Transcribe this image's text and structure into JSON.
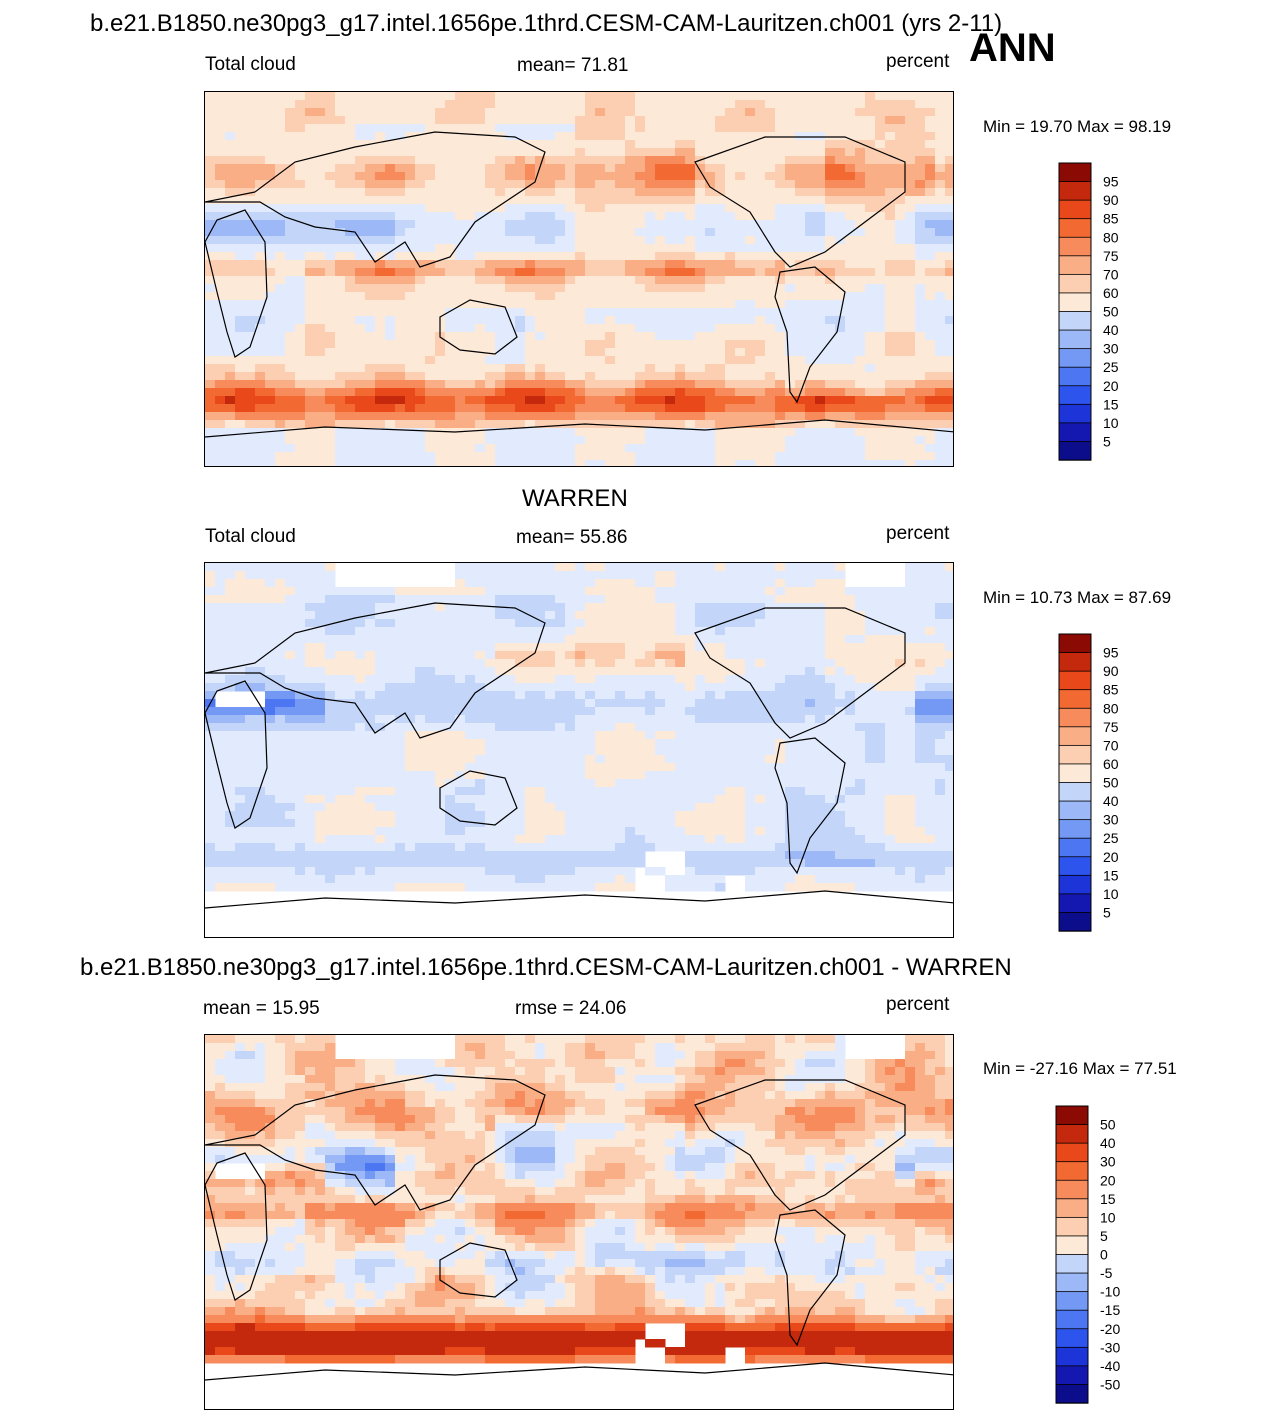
{
  "colors": {
    "abs_levels": [
      "#0b0d8a",
      "#1418b0",
      "#1d35d8",
      "#2e54ee",
      "#4d77f2",
      "#7399f4",
      "#9cb8f6",
      "#c3d6fa",
      "#e1ebfd",
      "#fde9d8",
      "#fccfb2",
      "#f9ae86",
      "#f78b5c",
      "#f26a32",
      "#e9481a",
      "#c5290d",
      "#8c0a04"
    ],
    "diff_levels": [
      "#0b0d8a",
      "#1418b0",
      "#1d35d8",
      "#2e54ee",
      "#4d77f2",
      "#7399f4",
      "#9cb8f6",
      "#c3d6fa",
      "#e1ebfd",
      "#fde9d8",
      "#fccfb2",
      "#f9ae86",
      "#f78b5c",
      "#f26a32",
      "#e9481a",
      "#c5290d",
      "#8c0a04"
    ],
    "coast": "#000000",
    "missing": "#ffffff"
  },
  "figure": {
    "main_title": "b.e21.B1850.ne30pg3_g17.intel.1656pe.1thrd.CESM-CAM-Lauritzen.ch001 (yrs 2-11)",
    "season": "ANN",
    "obs_title": "WARREN",
    "diff_title": "b.e21.B1850.ne30pg3_g17.intel.1656pe.1thrd.CESM-CAM-Lauritzen.ch001 - WARREN"
  },
  "panels": [
    {
      "left_label": "Total cloud",
      "center_label": "mean=  71.81",
      "units": "percent",
      "minmax": "Min =  19.70 Max =  98.19"
    },
    {
      "left_label": "Total cloud",
      "center_label": "mean=  55.86",
      "units": "percent",
      "minmax": "Min =  10.73 Max =  87.69"
    },
    {
      "left_label": "mean =  15.95",
      "center_label": "rmse =  24.06",
      "units": "percent",
      "minmax": "Min = -27.16 Max =  77.51"
    }
  ],
  "chart_data": [
    {
      "type": "heatmap",
      "title": "Total cloud (model, yrs 2-11, ANN)",
      "units": "percent",
      "mean": 71.81,
      "min": 19.7,
      "max": 98.19,
      "colorbar_levels": [
        "95",
        "90",
        "85",
        "80",
        "75",
        "70",
        "60",
        "50",
        "40",
        "30",
        "25",
        "20",
        "15",
        "10",
        "5"
      ],
      "domain": "global lon/lat map, centered on the Pacific"
    },
    {
      "type": "heatmap",
      "title": "Total cloud (WARREN observations)",
      "units": "percent",
      "mean": 55.86,
      "min": 10.73,
      "max": 87.69,
      "colorbar_levels": [
        "95",
        "90",
        "85",
        "80",
        "75",
        "70",
        "60",
        "50",
        "40",
        "30",
        "25",
        "20",
        "15",
        "10",
        "5"
      ],
      "domain": "global lon/lat map, centered on the Pacific"
    },
    {
      "type": "heatmap",
      "title": "Model - WARREN difference",
      "units": "percent",
      "mean": 15.95,
      "rmse": 24.06,
      "min": -27.16,
      "max": 77.51,
      "colorbar_levels": [
        "50",
        "40",
        "30",
        "20",
        "15",
        "10",
        "5",
        "0",
        "-5",
        "-10",
        "-15",
        "-20",
        "-30",
        "-40",
        "-50"
      ],
      "domain": "global lon/lat map, centered on the Pacific"
    }
  ]
}
